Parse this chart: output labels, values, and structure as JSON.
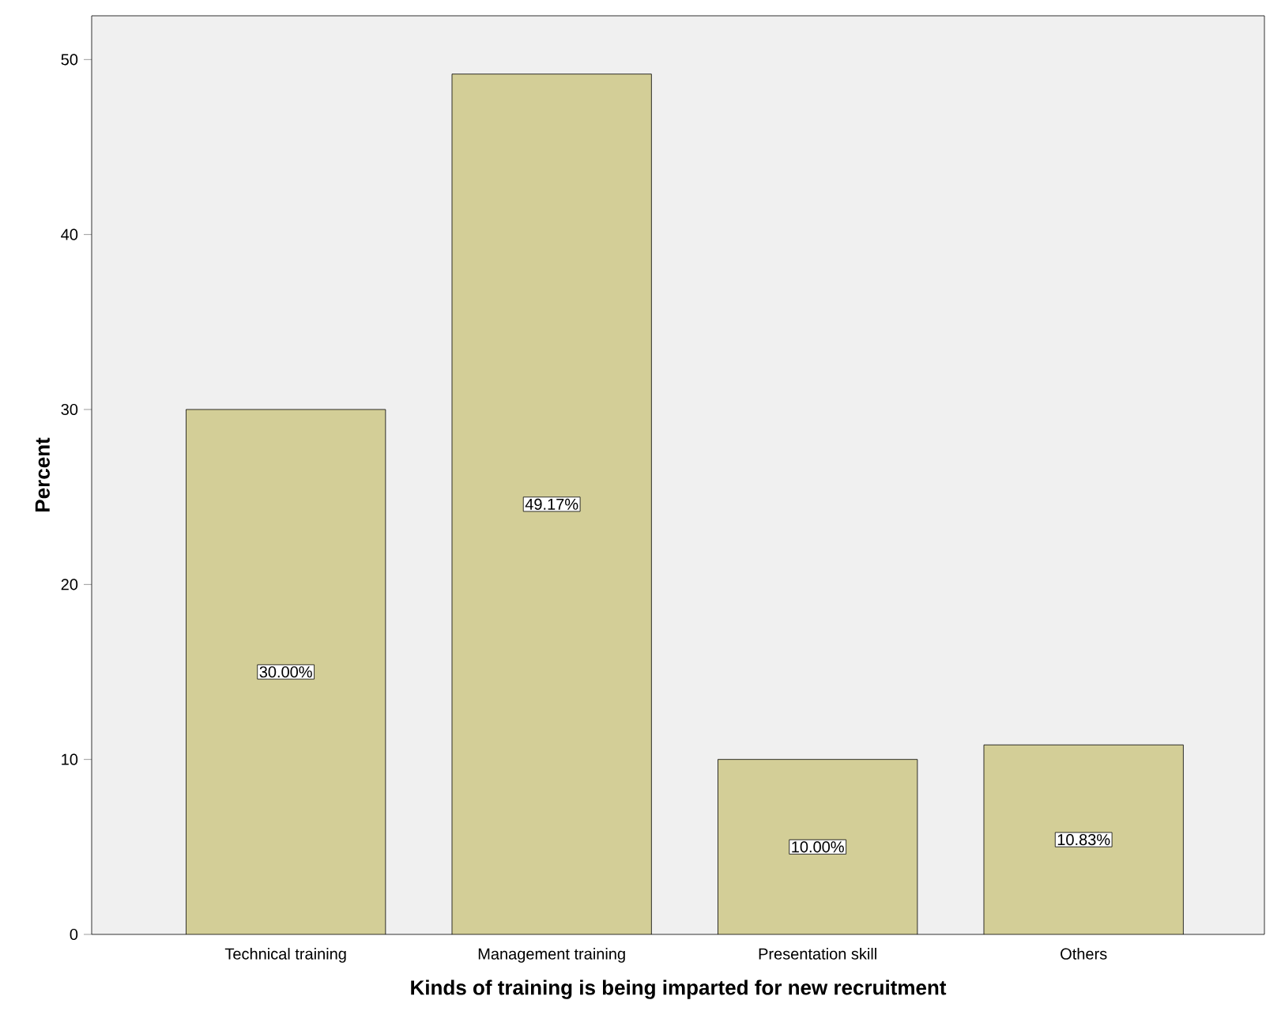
{
  "chart_data": {
    "type": "bar",
    "xlabel": "Kinds of training is being imparted for new recruitment",
    "ylabel": "Percent",
    "categories": [
      "Technical training",
      "Management training",
      "Presentation skill",
      "Others"
    ],
    "values": [
      30.0,
      49.17,
      10.0,
      10.83
    ],
    "value_labels": [
      "30.00%",
      "49.17%",
      "10.00%",
      "10.83%"
    ],
    "color": "#d3ce97",
    "ylim": [
      0,
      52.5
    ],
    "yticks": [
      0,
      10,
      20,
      30,
      40,
      50
    ]
  }
}
